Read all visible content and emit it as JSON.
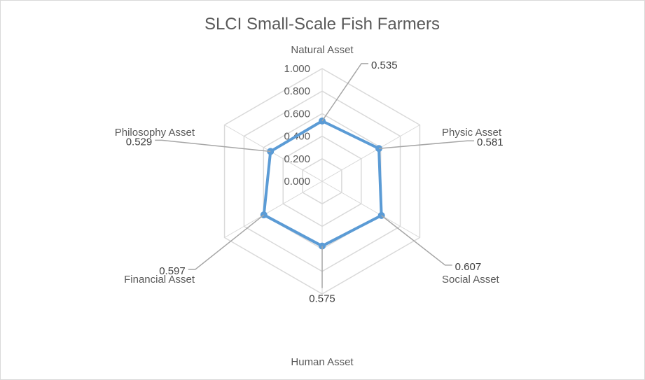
{
  "chart_data": {
    "type": "radar",
    "title": "SLCI Small-Scale Fish Farmers",
    "categories": [
      "Natural Asset",
      "Physic Asset",
      "Social Asset",
      "Human Asset",
      "Financial Asset",
      "Philosophy Asset"
    ],
    "series": [
      {
        "values": [
          0.535,
          0.581,
          0.607,
          0.575,
          0.597,
          0.529
        ],
        "color": "#5b9bd5"
      }
    ],
    "data_labels": [
      "0.535",
      "0.581",
      "0.607",
      "0.575",
      "0.597",
      "0.529"
    ],
    "tick_labels": [
      "0.000",
      "0.200",
      "0.400",
      "0.600",
      "0.800",
      "1.000"
    ],
    "rlim": [
      0,
      1
    ],
    "grid": true,
    "grid_color": "#d9d9d9",
    "leader_line_color": "#a6a6a6"
  }
}
